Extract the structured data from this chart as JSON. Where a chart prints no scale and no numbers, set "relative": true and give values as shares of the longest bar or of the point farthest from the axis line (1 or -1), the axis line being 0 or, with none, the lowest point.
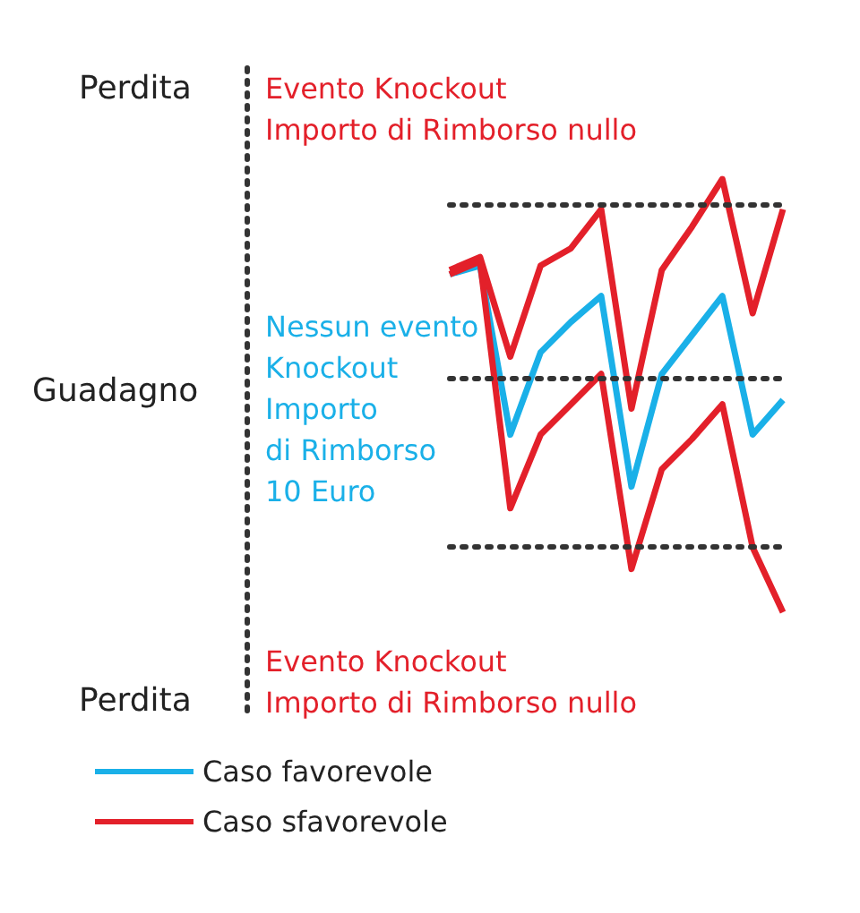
{
  "chart_data": {
    "type": "line",
    "relative": true,
    "categories": [
      null,
      null,
      null,
      null,
      null,
      null,
      null,
      null,
      null,
      null,
      null,
      null
    ],
    "series": [
      {
        "name": "Caso favorevole",
        "color": "#1ab0e8",
        "values": [
          0.78,
          0.8,
          0.41,
          0.6,
          0.67,
          0.73,
          0.29,
          0.55,
          0.64,
          0.73,
          0.41,
          0.49
        ]
      },
      {
        "name": "Caso sfavorevole",
        "color": "#e3202a",
        "values": [
          0.79,
          0.82,
          0.59,
          0.8,
          0.84,
          0.93,
          0.47,
          0.79,
          0.89,
          1,
          0.69,
          0.93
        ]
      },
      {
        "color": "#e3202a",
        "values": [
          0.78,
          0.81,
          0.24,
          0.41,
          0.48,
          0.55,
          0.1,
          0.33,
          0.4,
          0.48,
          0.15,
          0
        ]
      }
    ],
    "ref_lines": [
      {
        "axis": "y",
        "value": 0.94,
        "color": "#333333",
        "line_style": "dotted"
      },
      {
        "axis": "y",
        "value": 0.54,
        "color": "#333333",
        "line_style": "dotted"
      },
      {
        "axis": "y",
        "value": 0.15,
        "color": "#333333",
        "line_style": "dotted"
      }
    ],
    "annotations": [
      "Perdita",
      "Guadagno",
      "Perdita",
      "Evento Knockout\nImporto di Rimborso nullo",
      "Nessun evento\nKnockout\nImporto\ndi Rimborso\n10 Euro",
      "Evento Knockout\nImporto di Rimborso nullo"
    ],
    "legend": "bottom left",
    "marker": "none",
    "line_style": "solid"
  }
}
